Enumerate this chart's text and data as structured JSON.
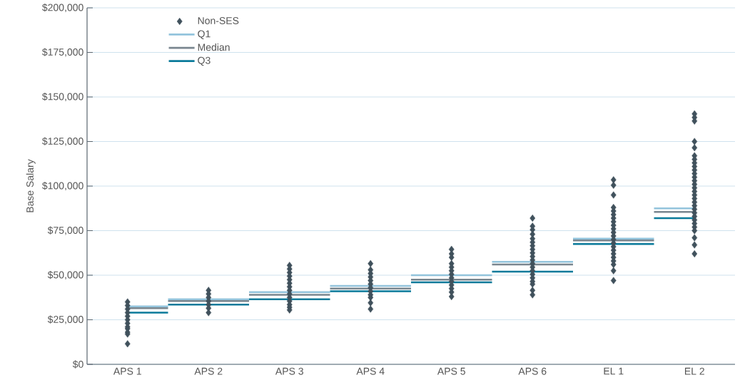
{
  "chart_data": {
    "type": "scatter",
    "ylabel": "Base Salary",
    "categories": [
      "APS 1",
      "APS 2",
      "APS 3",
      "APS 4",
      "APS 5",
      "APS 6",
      "EL 1",
      "EL 2"
    ],
    "ylim": [
      0,
      200000
    ],
    "yticks": [
      {
        "value": 0,
        "label": "$0"
      },
      {
        "value": 25000,
        "label": "$25,000"
      },
      {
        "value": 50000,
        "label": "$50,000"
      },
      {
        "value": 75000,
        "label": "$75,000"
      },
      {
        "value": 100000,
        "label": "$100,000"
      },
      {
        "value": 125000,
        "label": "$125,000"
      },
      {
        "value": 150000,
        "label": "$150,000"
      },
      {
        "value": 175000,
        "label": "$175,000"
      },
      {
        "value": 200000,
        "label": "$200,000"
      }
    ],
    "grid": "y",
    "legend": "top left",
    "series": [
      {
        "name": "Non-SES",
        "marker": "diamond",
        "color": "#40515c",
        "x": [
          "APS 1",
          "APS 1",
          "APS 1",
          "APS 1",
          "APS 1",
          "APS 1",
          "APS 1",
          "APS 1",
          "APS 1",
          "APS 1",
          "APS 1",
          "APS 1",
          "APS 2",
          "APS 2",
          "APS 2",
          "APS 2",
          "APS 2",
          "APS 2",
          "APS 2",
          "APS 3",
          "APS 3",
          "APS 3",
          "APS 3",
          "APS 3",
          "APS 3",
          "APS 3",
          "APS 3",
          "APS 3",
          "APS 3",
          "APS 3",
          "APS 3",
          "APS 3",
          "APS 3",
          "APS 4",
          "APS 4",
          "APS 4",
          "APS 4",
          "APS 4",
          "APS 4",
          "APS 4",
          "APS 4",
          "APS 4",
          "APS 4",
          "APS 4",
          "APS 4",
          "APS 5",
          "APS 5",
          "APS 5",
          "APS 5",
          "APS 5",
          "APS 5",
          "APS 5",
          "APS 5",
          "APS 5",
          "APS 5",
          "APS 5",
          "APS 5",
          "APS 5",
          "APS 6",
          "APS 6",
          "APS 6",
          "APS 6",
          "APS 6",
          "APS 6",
          "APS 6",
          "APS 6",
          "APS 6",
          "APS 6",
          "APS 6",
          "APS 6",
          "APS 6",
          "APS 6",
          "APS 6",
          "APS 6",
          "APS 6",
          "APS 6",
          "APS 6",
          "APS 6",
          "EL 1",
          "EL 1",
          "EL 1",
          "EL 1",
          "EL 1",
          "EL 1",
          "EL 1",
          "EL 1",
          "EL 1",
          "EL 1",
          "EL 1",
          "EL 1",
          "EL 1",
          "EL 1",
          "EL 1",
          "EL 1",
          "EL 1",
          "EL 1",
          "EL 1",
          "EL 1",
          "EL 1",
          "EL 1",
          "EL 2",
          "EL 2",
          "EL 2",
          "EL 2",
          "EL 2",
          "EL 2",
          "EL 2",
          "EL 2",
          "EL 2",
          "EL 2",
          "EL 2",
          "EL 2",
          "EL 2",
          "EL 2",
          "EL 2",
          "EL 2",
          "EL 2",
          "EL 2",
          "EL 2",
          "EL 2",
          "EL 2",
          "EL 2",
          "EL 2",
          "EL 2",
          "EL 2",
          "EL 2",
          "EL 2",
          "EL 2",
          "EL 2",
          "EL 2"
        ],
        "values": [
          35000,
          33000,
          31000,
          29000,
          27000,
          25000,
          23000,
          21000,
          20000,
          18000,
          17000,
          11500,
          41500,
          39500,
          37500,
          35500,
          33500,
          31500,
          29000,
          55500,
          53500,
          51500,
          49500,
          47500,
          45500,
          43500,
          41500,
          39500,
          37500,
          35500,
          33500,
          32000,
          30500,
          56500,
          53000,
          51000,
          49000,
          47000,
          45000,
          43000,
          41000,
          39000,
          37500,
          34500,
          31000,
          64500,
          62000,
          60000,
          56500,
          54500,
          52500,
          50500,
          48500,
          46500,
          44500,
          42500,
          40500,
          38000,
          82000,
          77500,
          75500,
          73000,
          70500,
          68500,
          66500,
          64500,
          62500,
          60500,
          58500,
          56500,
          54500,
          52500,
          50500,
          48500,
          46500,
          45000,
          41500,
          39000,
          103500,
          100500,
          95000,
          88000,
          86000,
          84000,
          82000,
          80000,
          78000,
          76000,
          74000,
          72000,
          70000,
          68000,
          66000,
          64000,
          62000,
          60000,
          58000,
          56000,
          52500,
          47000,
          140500,
          138500,
          136500,
          125000,
          121500,
          117000,
          115000,
          113000,
          111000,
          109000,
          107000,
          105000,
          103000,
          101000,
          99000,
          97000,
          95000,
          93000,
          91000,
          89000,
          87000,
          85000,
          83000,
          81000,
          79000,
          77000,
          75000,
          71000,
          67000,
          62000
        ]
      },
      {
        "name": "Q1",
        "type": "step",
        "marker": "none",
        "color": "#93c4dc",
        "values": [
          32500,
          36500,
          40500,
          44000,
          50000,
          57500,
          70500,
          87500
        ]
      },
      {
        "name": "Median",
        "type": "step",
        "marker": "none",
        "color": "#7a868f",
        "values": [
          31500,
          35500,
          39000,
          42500,
          47500,
          56000,
          69500,
          85500
        ]
      },
      {
        "name": "Q3",
        "type": "step",
        "marker": "none",
        "color": "#0a7a9a",
        "values": [
          29000,
          33500,
          36500,
          41000,
          46000,
          52000,
          67500,
          82000
        ]
      }
    ]
  }
}
